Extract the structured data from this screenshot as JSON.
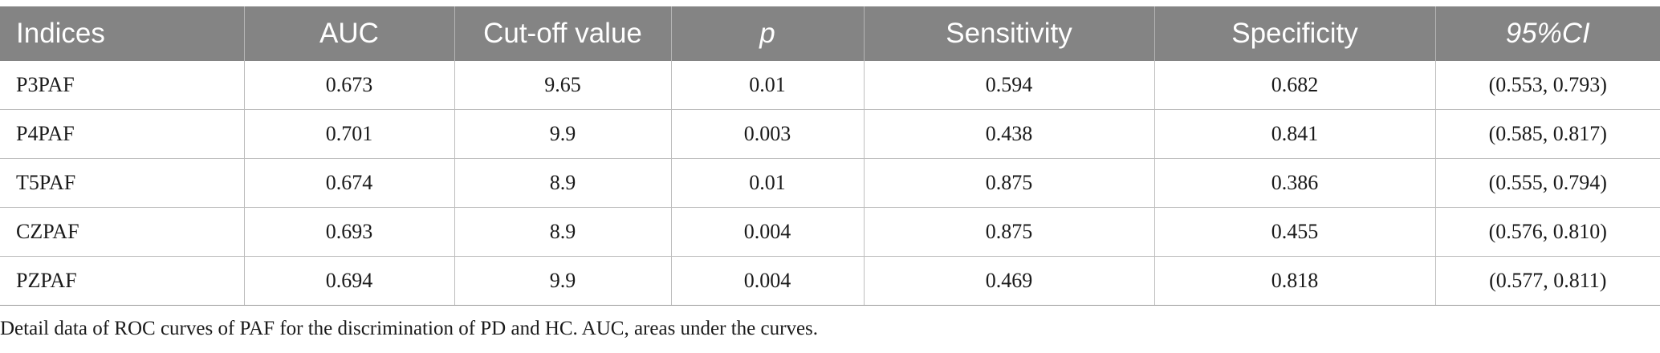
{
  "table": {
    "headers": [
      "Indices",
      "AUC",
      "Cut-off value",
      "p",
      "Sensitivity",
      "Specificity",
      "95%CI"
    ],
    "rows": [
      [
        "P3PAF",
        "0.673",
        "9.65",
        "0.01",
        "0.594",
        "0.682",
        "(0.553, 0.793)"
      ],
      [
        "P4PAF",
        "0.701",
        "9.9",
        "0.003",
        "0.438",
        "0.841",
        "(0.585, 0.817)"
      ],
      [
        "T5PAF",
        "0.674",
        "8.9",
        "0.01",
        "0.875",
        "0.386",
        "(0.555, 0.794)"
      ],
      [
        "CZPAF",
        "0.693",
        "8.9",
        "0.004",
        "0.875",
        "0.455",
        "(0.576, 0.810)"
      ],
      [
        "PZPAF",
        "0.694",
        "9.9",
        "0.004",
        "0.469",
        "0.818",
        "(0.577, 0.811)"
      ]
    ]
  },
  "caption": "Detail data of ROC curves of PAF for the discrimination of PD and HC. AUC, areas under the curves.",
  "colors": {
    "header_bg": "#848484",
    "header_text": "#ffffff",
    "grid_line": "#bdbdbd"
  }
}
